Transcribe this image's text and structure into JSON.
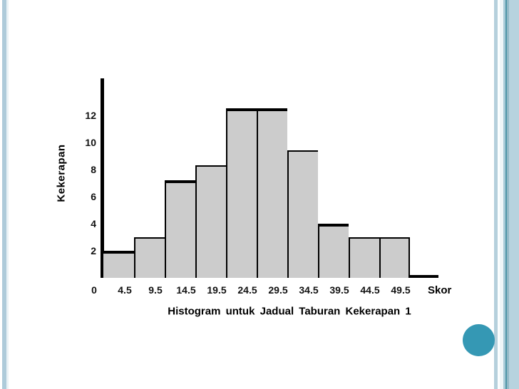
{
  "slide": {
    "background_color": "#ffffff",
    "decorations": {
      "left_stripe_color": "#aecbda",
      "left_stripe_faint_color": "#e9f2f6",
      "right_stripes": [
        "#b5d0dc",
        "#fbfeff",
        "#eef6f8",
        "#a8cbd8",
        "#4f96a8",
        "#93bac7",
        "#b7d3df"
      ],
      "accent_circle_color": "#3598b4"
    }
  },
  "chart_data": {
    "type": "bar",
    "subtype": "histogram",
    "title": "Histogram untuk Jadual Taburan Kekerapan 1",
    "xlabel": "Skor",
    "ylabel": "Kekerapan",
    "bin_edges": [
      0,
      4.5,
      9.5,
      14.5,
      19.5,
      24.5,
      29.5,
      34.5,
      39.5,
      44.5,
      49.5
    ],
    "x_tick_labels": [
      "0",
      "4.5",
      "9.5",
      "14.5",
      "19.5",
      "24.5",
      "29.5",
      "34.5",
      "39.5",
      "44.5",
      "49.5"
    ],
    "values": [
      2,
      3,
      7.2,
      8.3,
      12.5,
      12.5,
      9.4,
      4,
      3,
      3
    ],
    "y_ticks": [
      2,
      4,
      6,
      8,
      10,
      12
    ],
    "ylim": [
      0,
      14.5
    ],
    "grid": false,
    "legend": false,
    "bar_fill_color": "#cccccc",
    "bar_border_color": "#000000",
    "emphasized_top_bar_indexes": [
      0,
      2,
      4,
      5,
      7
    ]
  }
}
